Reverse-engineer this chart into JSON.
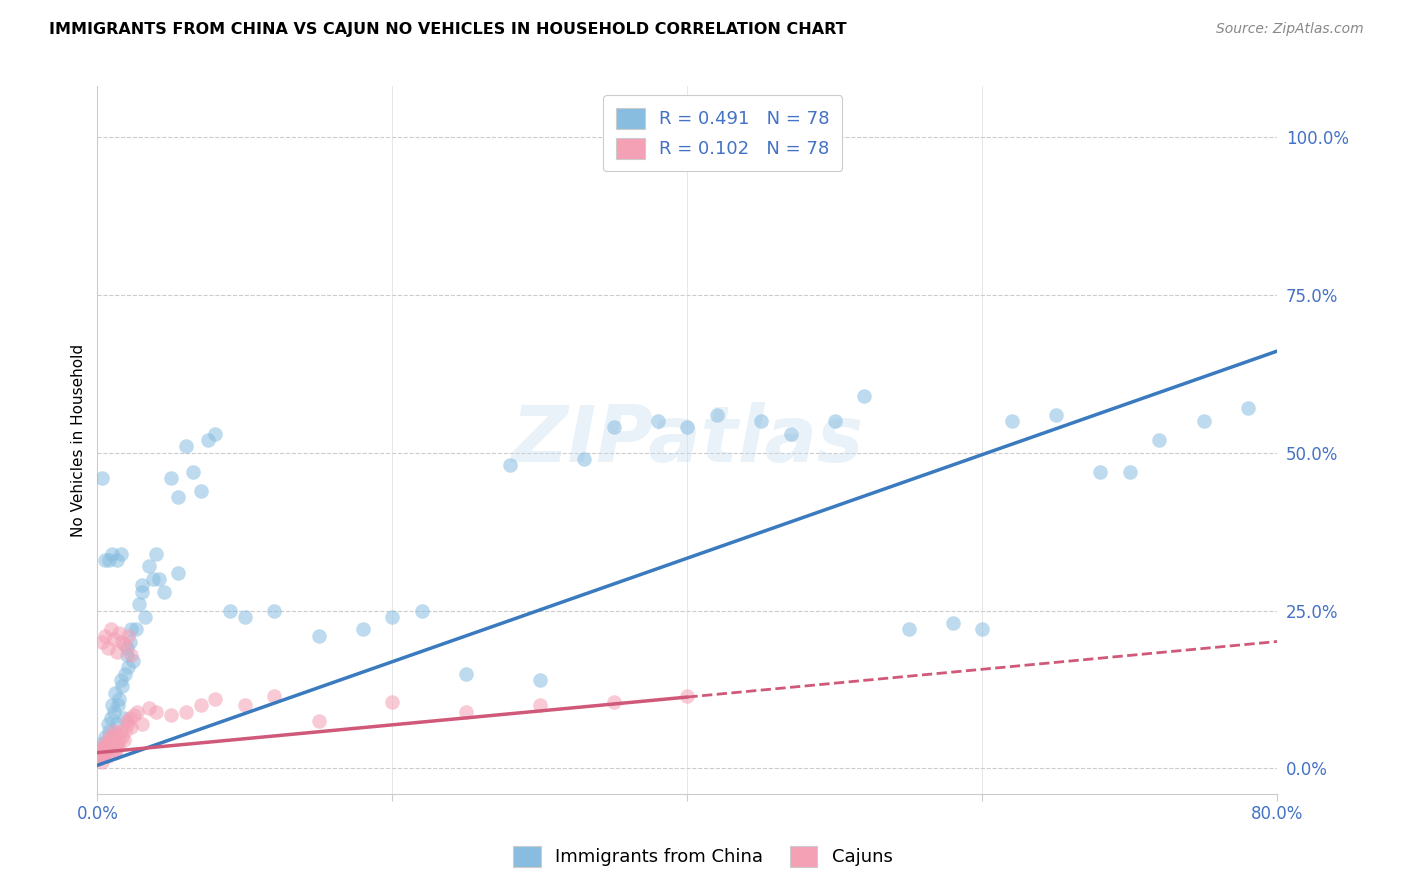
{
  "title": "IMMIGRANTS FROM CHINA VS CAJUN NO VEHICLES IN HOUSEHOLD CORRELATION CHART",
  "source": "Source: ZipAtlas.com",
  "ylabel": "No Vehicles in Household",
  "ytick_values": [
    0.0,
    25.0,
    50.0,
    75.0,
    100.0
  ],
  "xlim": [
    0.0,
    80.0
  ],
  "ylim": [
    -4.0,
    108.0
  ],
  "legend_label1": "Immigrants from China",
  "legend_label2": "Cajuns",
  "color_blue": "#88bde0",
  "color_pink": "#f4a0b5",
  "color_blue_line": "#3a7abf",
  "color_pink_line": "#d05878",
  "watermark": "ZIPatlas",
  "china_x": [
    0.2,
    0.3,
    0.4,
    0.5,
    0.6,
    0.7,
    0.8,
    0.9,
    1.0,
    1.1,
    1.2,
    1.3,
    1.4,
    1.5,
    1.6,
    1.7,
    1.8,
    1.9,
    2.0,
    2.1,
    2.2,
    2.4,
    2.6,
    2.8,
    3.0,
    3.2,
    3.5,
    3.8,
    4.0,
    4.5,
    5.0,
    5.5,
    6.0,
    7.0,
    8.0,
    10.0,
    12.0,
    15.0,
    18.0,
    20.0,
    22.0,
    25.0,
    28.0,
    30.0,
    33.0,
    35.0,
    38.0,
    40.0,
    42.0,
    45.0,
    47.0,
    50.0,
    52.0,
    55.0,
    58.0,
    60.0,
    62.0,
    65.0,
    68.0,
    70.0,
    72.0,
    75.0,
    78.0,
    0.3,
    0.5,
    0.8,
    1.0,
    1.3,
    1.6,
    2.0,
    2.3,
    3.0,
    4.2,
    5.5,
    6.5,
    7.5,
    9.0
  ],
  "china_y": [
    3.0,
    2.0,
    4.0,
    5.0,
    3.0,
    7.0,
    6.0,
    8.0,
    10.0,
    9.0,
    12.0,
    7.0,
    10.0,
    11.0,
    14.0,
    13.0,
    8.0,
    15.0,
    18.0,
    16.0,
    20.0,
    17.0,
    22.0,
    26.0,
    28.0,
    24.0,
    32.0,
    30.0,
    34.0,
    28.0,
    46.0,
    43.0,
    51.0,
    44.0,
    53.0,
    24.0,
    25.0,
    21.0,
    22.0,
    24.0,
    25.0,
    15.0,
    48.0,
    14.0,
    49.0,
    54.0,
    55.0,
    54.0,
    56.0,
    55.0,
    53.0,
    55.0,
    59.0,
    22.0,
    23.0,
    22.0,
    55.0,
    56.0,
    47.0,
    47.0,
    52.0,
    55.0,
    57.0,
    46.0,
    33.0,
    33.0,
    34.0,
    33.0,
    34.0,
    19.0,
    22.0,
    29.0,
    30.0,
    31.0,
    47.0,
    52.0,
    25.0
  ],
  "cajun_x": [
    0.1,
    0.15,
    0.2,
    0.25,
    0.3,
    0.35,
    0.4,
    0.45,
    0.5,
    0.55,
    0.6,
    0.65,
    0.7,
    0.75,
    0.8,
    0.85,
    0.9,
    0.95,
    1.0,
    1.05,
    1.1,
    1.15,
    1.2,
    1.25,
    1.3,
    1.35,
    1.4,
    1.5,
    1.6,
    1.7,
    1.8,
    1.9,
    2.0,
    2.1,
    2.2,
    2.3,
    2.5,
    2.7,
    3.0,
    3.5,
    4.0,
    5.0,
    6.0,
    7.0,
    8.0,
    10.0,
    12.0,
    15.0,
    20.0,
    25.0,
    30.0,
    35.0,
    40.0,
    0.3,
    0.5,
    0.7,
    0.9,
    1.1,
    1.3,
    1.5,
    1.7,
    1.9,
    2.1,
    2.3
  ],
  "cajun_y": [
    1.5,
    2.0,
    2.5,
    3.0,
    1.0,
    2.0,
    3.5,
    2.5,
    3.0,
    2.0,
    4.0,
    3.5,
    2.0,
    3.0,
    5.0,
    4.0,
    3.5,
    4.5,
    5.0,
    4.0,
    6.0,
    3.0,
    2.5,
    3.0,
    5.5,
    4.0,
    3.5,
    4.5,
    6.0,
    5.0,
    4.5,
    6.0,
    7.5,
    7.0,
    8.0,
    6.5,
    8.5,
    9.0,
    7.0,
    9.5,
    9.0,
    8.5,
    9.0,
    10.0,
    11.0,
    10.0,
    11.5,
    7.5,
    10.5,
    9.0,
    10.0,
    10.5,
    11.5,
    20.0,
    21.0,
    19.0,
    22.0,
    20.5,
    18.5,
    21.5,
    20.0,
    19.5,
    21.0,
    18.0
  ],
  "china_slope": 0.82,
  "china_intercept": 0.5,
  "cajun_solid_max": 40.0,
  "cajun_slope": 0.22,
  "cajun_intercept": 2.5
}
